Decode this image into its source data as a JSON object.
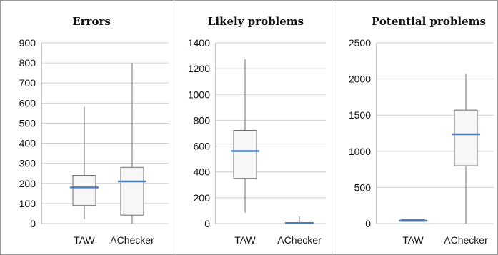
{
  "chart_data": [
    {
      "type": "box",
      "title": "Errors",
      "categories": [
        "TAW",
        "AChecker"
      ],
      "ylim": [
        0,
        900
      ],
      "yticks": [
        0,
        100,
        200,
        300,
        400,
        500,
        600,
        700,
        800,
        900
      ],
      "grid": true,
      "boxes": [
        {
          "min": 22,
          "q1": 90,
          "median": 180,
          "q3": 240,
          "max": 582
        },
        {
          "min": 0,
          "q1": 42,
          "median": 210,
          "q3": 280,
          "max": 800
        }
      ]
    },
    {
      "type": "box",
      "title": "Likely problems",
      "categories": [
        "TAW",
        "AChecker"
      ],
      "ylim": [
        0,
        1400
      ],
      "yticks": [
        0,
        200,
        400,
        600,
        800,
        1000,
        1200,
        1400
      ],
      "grid": true,
      "boxes": [
        {
          "min": 85,
          "q1": 350,
          "median": 562,
          "q3": 722,
          "max": 1272
        },
        {
          "min": 0,
          "q1": 0,
          "median": 4,
          "q3": 8,
          "max": 55
        }
      ]
    },
    {
      "type": "box",
      "title": "Potential problems",
      "categories": [
        "TAW",
        "AChecker"
      ],
      "ylim": [
        0,
        2500
      ],
      "yticks": [
        0,
        500,
        1000,
        1500,
        2000,
        2500
      ],
      "grid": true,
      "boxes": [
        {
          "min": 30,
          "q1": 30,
          "median": 40,
          "q3": 55,
          "max": 55
        },
        {
          "min": 0,
          "q1": 800,
          "median": 1235,
          "q3": 1570,
          "max": 2070
        }
      ]
    }
  ],
  "colors": {
    "median": "#4a7ebb",
    "box_fill": "#f7f7f7",
    "box_stroke": "#6e6e6e",
    "whisker": "#6e6e6e",
    "grid": "#cfcfcf",
    "panel_border": "#999999"
  }
}
